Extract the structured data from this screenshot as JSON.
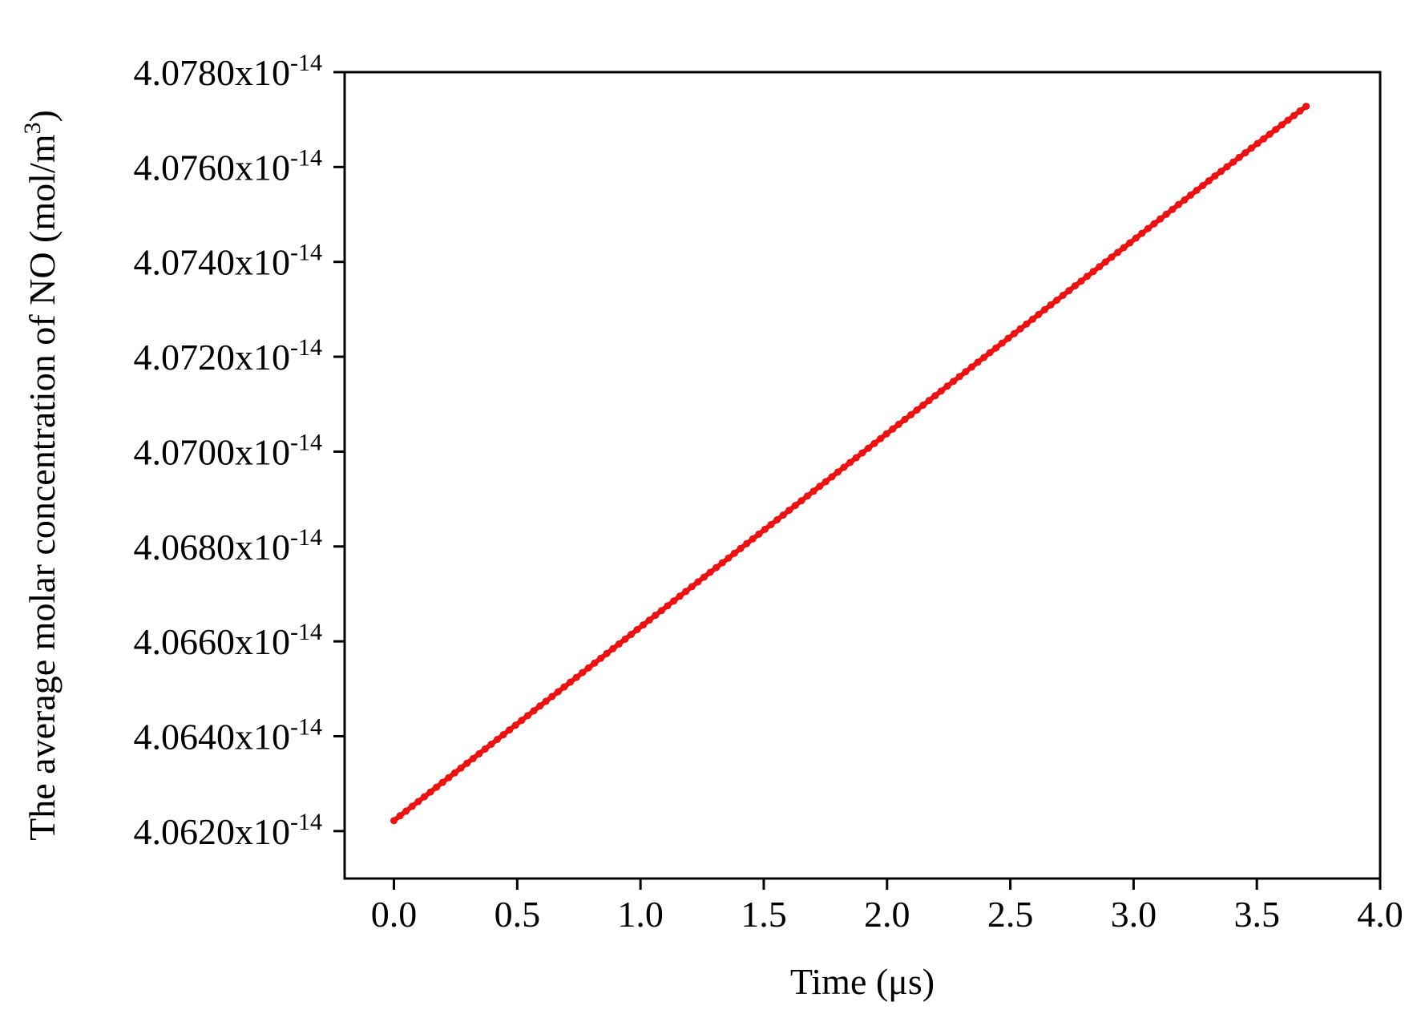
{
  "chart_data": {
    "type": "scatter",
    "xlabel": "Time (μs)",
    "ylabel": {
      "main": "The average molar concentration of NO (mol/m",
      "superscript": "3",
      "suffix": ")"
    },
    "xlim": [
      -0.2,
      4.0
    ],
    "ylim": [
      4.061e-14,
      4.078e-14
    ],
    "xticks": [
      {
        "value": 0.0,
        "label": "0.0"
      },
      {
        "value": 0.5,
        "label": "0.5"
      },
      {
        "value": 1.0,
        "label": "1.0"
      },
      {
        "value": 1.5,
        "label": "1.5"
      },
      {
        "value": 2.0,
        "label": "2.0"
      },
      {
        "value": 2.5,
        "label": "2.5"
      },
      {
        "value": 3.0,
        "label": "3.0"
      },
      {
        "value": 3.5,
        "label": "3.5"
      },
      {
        "value": 4.0,
        "label": "4.0"
      }
    ],
    "yticks": [
      {
        "value": 4.062e-14,
        "mantissa": "4.0620x10",
        "exponent": "-14"
      },
      {
        "value": 4.064e-14,
        "mantissa": "4.0640x10",
        "exponent": "-14"
      },
      {
        "value": 4.066e-14,
        "mantissa": "4.0660x10",
        "exponent": "-14"
      },
      {
        "value": 4.068e-14,
        "mantissa": "4.0680x10",
        "exponent": "-14"
      },
      {
        "value": 4.07e-14,
        "mantissa": "4.0700x10",
        "exponent": "-14"
      },
      {
        "value": 4.072e-14,
        "mantissa": "4.0720x10",
        "exponent": "-14"
      },
      {
        "value": 4.074e-14,
        "mantissa": "4.0740x10",
        "exponent": "-14"
      },
      {
        "value": 4.076e-14,
        "mantissa": "4.0760x10",
        "exponent": "-14"
      },
      {
        "value": 4.078e-14,
        "mantissa": "4.0780x10",
        "exponent": "-14"
      }
    ],
    "series": [
      {
        "color": "#ee1111",
        "x": [
          0.0,
          0.37,
          0.74,
          1.11,
          1.48,
          1.85,
          2.22,
          2.59,
          2.96,
          3.33,
          3.7
        ],
        "y": [
          4.06222e-14,
          4.06373e-14,
          4.06524e-14,
          4.06675e-14,
          4.06826e-14,
          4.06977e-14,
          4.07128e-14,
          4.07279e-14,
          4.0743e-14,
          4.07581e-14,
          4.07728e-14
        ]
      }
    ],
    "grid": false,
    "legend": "none"
  }
}
